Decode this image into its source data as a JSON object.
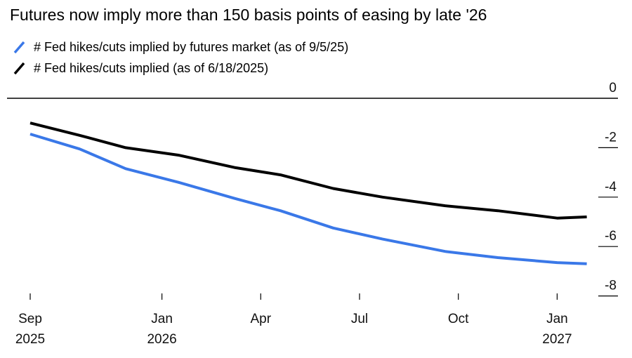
{
  "chart_data": {
    "type": "line",
    "title": "Futures now imply more than 150 basis points of easing by late '26",
    "xlabel": "",
    "ylabel": "",
    "ylim": [
      -8,
      0
    ],
    "yticks": [
      "0",
      "-2",
      "-4",
      "-6",
      "-8"
    ],
    "ytick_values": [
      0,
      -2,
      -4,
      -6,
      -8
    ],
    "xticks": [
      {
        "month": 0,
        "label": "Sep",
        "sublabel": "2025"
      },
      {
        "month": 4,
        "label": "Jan",
        "sublabel": "2026"
      },
      {
        "month": 7,
        "label": "Apr",
        "sublabel": ""
      },
      {
        "month": 10,
        "label": "Jul",
        "sublabel": ""
      },
      {
        "month": 13,
        "label": "Oct",
        "sublabel": ""
      },
      {
        "month": 16,
        "label": "Jan",
        "sublabel": "2027"
      }
    ],
    "xlim": [
      0,
      17
    ],
    "legend_position": "top-left",
    "series": [
      {
        "name": "# Fed hikes/cuts implied by futures market (as of 9/5/25)",
        "color": "#3a78e8",
        "x": [
          0,
          1.5,
          2.9,
          4.5,
          6.2,
          7.6,
          9.2,
          10.7,
          12.6,
          14.2,
          16.0,
          16.9
        ],
        "values": [
          -1.45,
          -2.05,
          -2.85,
          -3.4,
          -4.05,
          -4.55,
          -5.25,
          -5.7,
          -6.2,
          -6.45,
          -6.65,
          -6.7
        ]
      },
      {
        "name": "# Fed hikes/cuts implied (as of 6/18/2025)",
        "color": "#000000",
        "x": [
          0,
          1.5,
          2.9,
          4.5,
          6.2,
          7.6,
          9.2,
          10.7,
          12.6,
          14.2,
          16.0,
          16.9
        ],
        "values": [
          -1.0,
          -1.5,
          -2.0,
          -2.3,
          -2.8,
          -3.1,
          -3.65,
          -4.0,
          -4.35,
          -4.55,
          -4.85,
          -4.8
        ]
      }
    ]
  }
}
